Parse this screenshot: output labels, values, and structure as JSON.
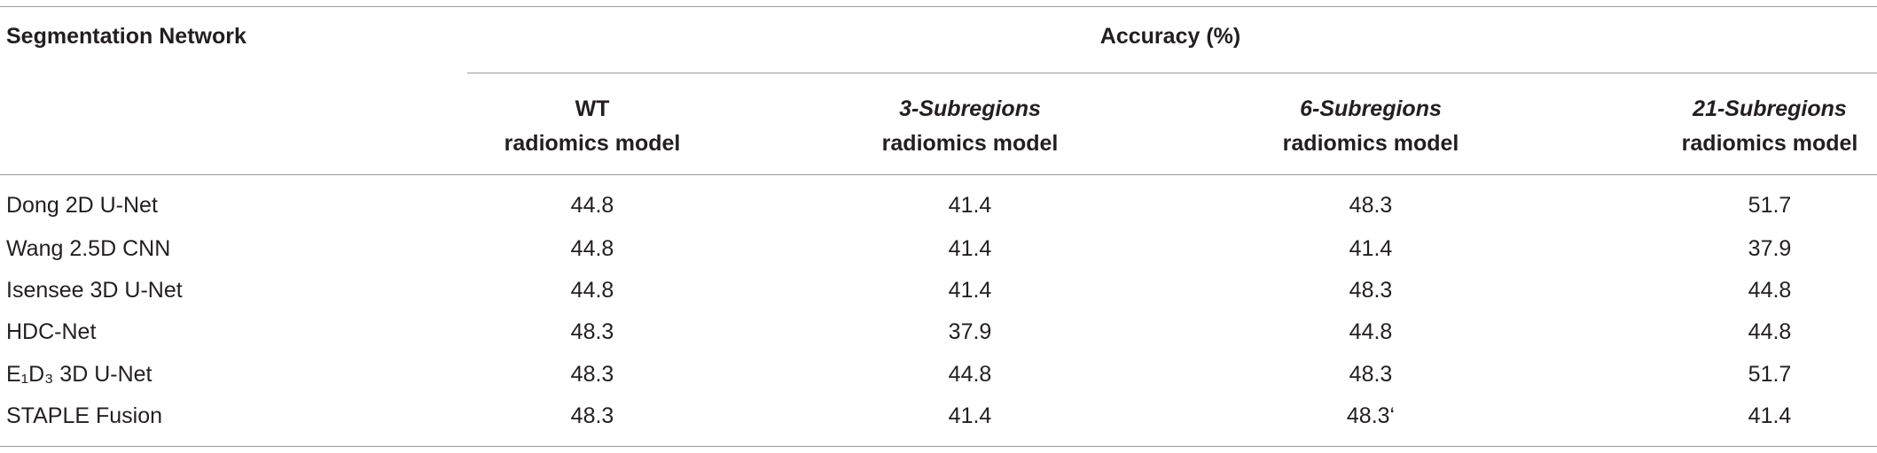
{
  "header": {
    "row_label": "Segmentation Network",
    "group_label": "Accuracy (%)"
  },
  "columns": [
    {
      "title": "WT",
      "subtitle": "radiomics model"
    },
    {
      "title": "3-Subregions",
      "subtitle": "radiomics model"
    },
    {
      "title": "6-Subregions",
      "subtitle": "radiomics model"
    },
    {
      "title": "21-Subregions",
      "subtitle": "radiomics model"
    }
  ],
  "rows": [
    {
      "label": "Dong 2D U-Net",
      "values": [
        "44.8",
        "41.4",
        "48.3",
        "51.7"
      ]
    },
    {
      "label": "Wang 2.5D CNN",
      "values": [
        "44.8",
        "41.4",
        "41.4",
        "37.9"
      ]
    },
    {
      "label": "Isensee 3D U-Net",
      "values": [
        "44.8",
        "41.4",
        "48.3",
        "44.8"
      ]
    },
    {
      "label": "HDC-Net",
      "values": [
        "48.3",
        "37.9",
        "44.8",
        "44.8"
      ]
    },
    {
      "label": "E₁D₃ 3D U-Net",
      "values": [
        "48.3",
        "44.8",
        "48.3",
        "51.7"
      ]
    },
    {
      "label": "STAPLE Fusion",
      "values": [
        "48.3",
        "41.4",
        "48.3‘",
        "41.4"
      ]
    }
  ]
}
